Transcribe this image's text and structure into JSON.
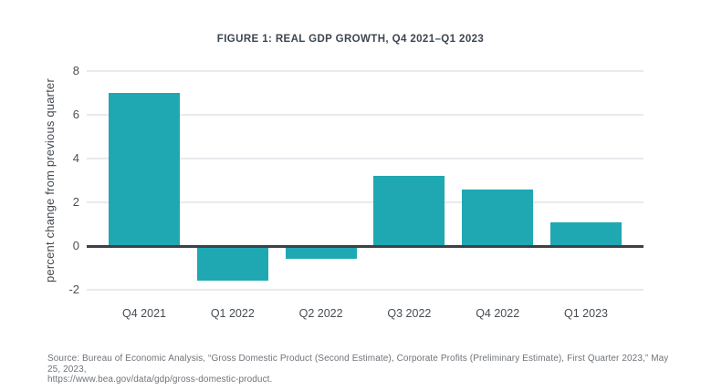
{
  "figure": {
    "title": "FIGURE 1: REAL GDP GROWTH, Q4 2021–Q1 2023",
    "source_line1": "Source: Bureau of Economic Analysis, “Gross Domestic Product (Second Estimate), Corporate Profits (Preliminary Estimate), First Quarter 2023,” May 25, 2023,",
    "source_line2": "https://www.bea.gov/data/gdp/gross-domestic-product."
  },
  "chart_data": {
    "type": "bar",
    "title": "FIGURE 1: REAL GDP GROWTH, Q4 2021–Q1 2023",
    "categories": [
      "Q4 2021",
      "Q1 2022",
      "Q2 2022",
      "Q3 2022",
      "Q4 2022",
      "Q1 2023"
    ],
    "values": [
      7.0,
      -1.6,
      -0.6,
      3.2,
      2.6,
      1.1
    ],
    "xlabel": "",
    "ylabel": "percent change from previous quarter",
    "ylim": [
      -2,
      8
    ],
    "yticks": [
      8,
      6,
      4,
      2,
      0,
      -2
    ],
    "grid": true,
    "legend_position": "none",
    "bar_color": "#1fa8b2",
    "zero_line_color": "#3c4145",
    "gridline_color": "#e9eaee"
  }
}
